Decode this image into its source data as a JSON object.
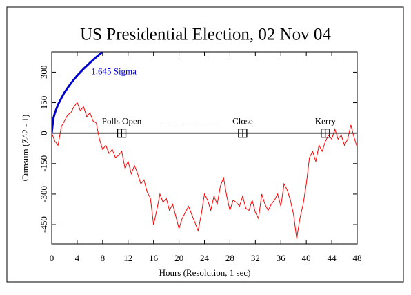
{
  "chart_data": {
    "type": "line",
    "title": "US Presidential Election, 02 Nov 04",
    "xlabel": "Hours (Resolution, 1 sec)",
    "ylabel": "Cumsum (Z^2 - 1)",
    "xlim": [
      0,
      48
    ],
    "ylim": [
      -545,
      400
    ],
    "xticks": [
      0,
      4,
      8,
      12,
      16,
      20,
      24,
      28,
      32,
      36,
      40,
      44,
      48
    ],
    "yticks": [
      -450,
      -300,
      -150,
      0,
      150,
      300
    ],
    "series": [
      {
        "name": "Cumsum",
        "color": "#ff0000",
        "x": [
          0,
          0.5,
          1,
          1.5,
          2,
          2.5,
          3,
          3.5,
          4,
          4.5,
          5,
          5.5,
          6,
          6.5,
          7,
          7.5,
          8,
          8.5,
          9,
          9.5,
          10,
          10.5,
          11,
          11.5,
          12,
          12.5,
          13,
          13.5,
          14,
          14.5,
          15,
          15.5,
          16,
          16.5,
          17,
          17.5,
          18,
          18.5,
          19,
          19.5,
          20,
          20.5,
          21,
          21.5,
          22,
          22.5,
          23,
          23.5,
          24,
          24.5,
          25,
          25.5,
          26,
          26.5,
          27,
          27.5,
          28,
          28.5,
          29,
          29.5,
          30,
          30.5,
          31,
          31.5,
          32,
          32.5,
          33,
          33.5,
          34,
          34.5,
          35,
          35.5,
          36,
          36.5,
          37,
          37.5,
          38,
          38.5,
          39,
          39.5,
          40,
          40.5,
          41,
          41.5,
          42,
          42.5,
          43,
          43.5,
          44,
          44.5,
          45,
          45.5,
          46,
          46.5,
          47,
          47.5,
          48
        ],
        "values": [
          0,
          -40,
          -60,
          30,
          60,
          90,
          100,
          130,
          150,
          110,
          130,
          80,
          100,
          60,
          50,
          -30,
          -80,
          -60,
          -100,
          -80,
          -120,
          -110,
          -90,
          -170,
          -140,
          -200,
          -160,
          -200,
          -250,
          -230,
          -290,
          -320,
          -450,
          -380,
          -300,
          -340,
          -320,
          -380,
          -350,
          -410,
          -470,
          -420,
          -390,
          -360,
          -400,
          -440,
          -480,
          -400,
          -300,
          -330,
          -380,
          -310,
          -350,
          -260,
          -220,
          -310,
          -380,
          -330,
          -340,
          -360,
          -310,
          -370,
          -380,
          -330,
          -390,
          -420,
          -300,
          -350,
          -380,
          -350,
          -330,
          -300,
          -360,
          -250,
          -280,
          -330,
          -400,
          -520,
          -420,
          -350,
          -250,
          -120,
          -90,
          -140,
          -60,
          -90,
          -40,
          -10,
          -30,
          20,
          -30,
          -10,
          -60,
          -30,
          40,
          -20,
          -70
        ]
      },
      {
        "name": "1.645 Sigma",
        "color": "#0000cc",
        "x": [
          0,
          0.25,
          0.5,
          1,
          2,
          3,
          4,
          5,
          6,
          7,
          8
        ],
        "values": [
          0,
          71,
          100,
          141,
          200,
          245,
          283,
          316,
          346,
          374,
          400
        ]
      }
    ],
    "events": [
      {
        "x": 11,
        "y": 0,
        "label": "Polls Open"
      },
      {
        "x": 30,
        "y": 0,
        "label": "Close"
      },
      {
        "x": 43,
        "y": 0,
        "label": "Kerry"
      }
    ],
    "dashes": "-------------------"
  }
}
